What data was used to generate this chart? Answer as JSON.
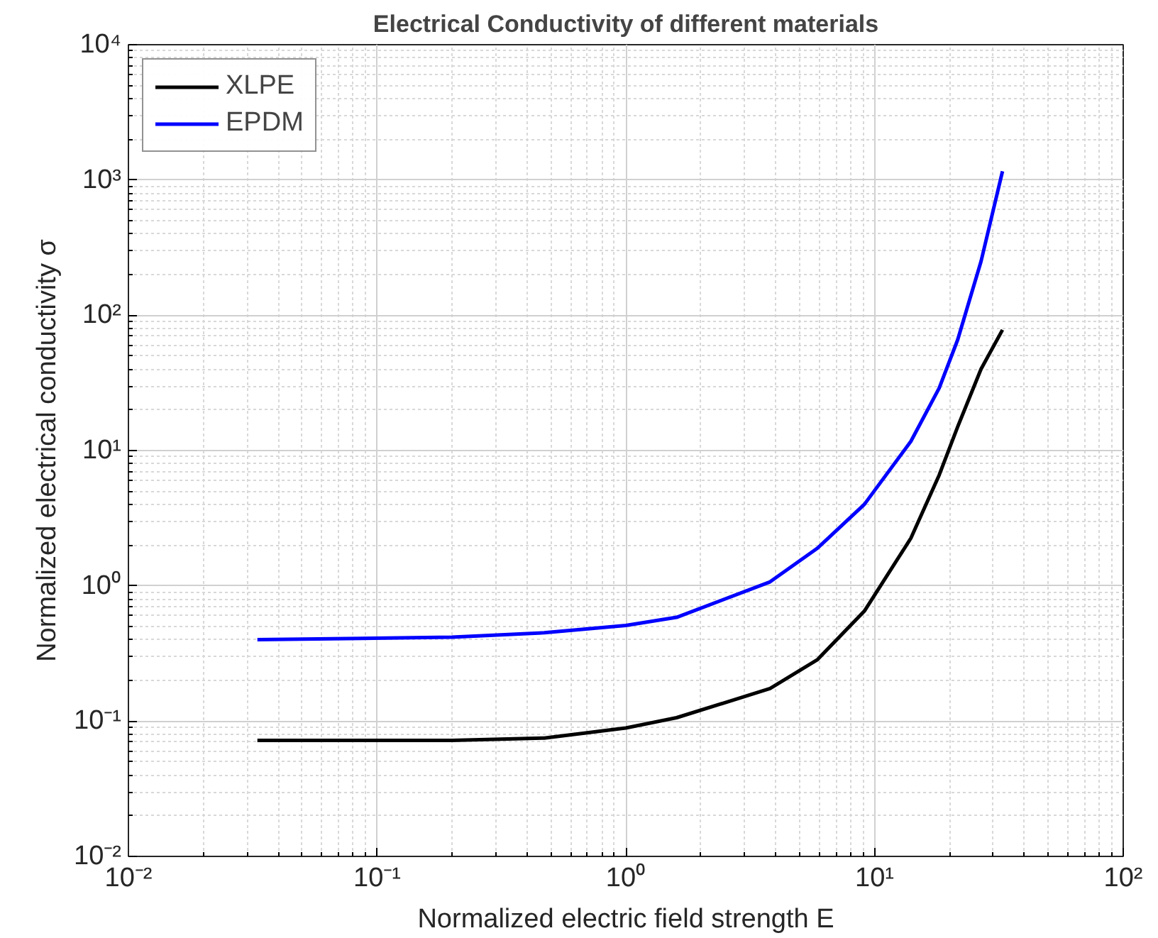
{
  "chart_data": {
    "type": "line",
    "title": "Electrical Conductivity of different materials",
    "xlabel": "Normalized electric field strength E",
    "ylabel": "Normalized electrical conductivity σ",
    "log": "xy",
    "grid": true,
    "legend": "top left",
    "line_style": "solid",
    "marker": "none",
    "xlim": [
      0.01,
      100
    ],
    "ylim": [
      0.01,
      10000
    ],
    "xticks": [
      {
        "value": 0.01,
        "label": "10⁻²"
      },
      {
        "value": 0.1,
        "label": "10⁻¹"
      },
      {
        "value": 1,
        "label": "10⁰"
      },
      {
        "value": 10,
        "label": "10¹"
      },
      {
        "value": 100,
        "label": "10²"
      }
    ],
    "yticks": [
      {
        "value": 0.01,
        "label": "10⁻²"
      },
      {
        "value": 0.1,
        "label": "10⁻¹"
      },
      {
        "value": 1,
        "label": "10⁰"
      },
      {
        "value": 10,
        "label": "10¹"
      },
      {
        "value": 100,
        "label": "10²"
      },
      {
        "value": 1000,
        "label": "10³"
      },
      {
        "value": 10000,
        "label": "10⁴"
      }
    ],
    "series": [
      {
        "name": "XLPE",
        "color": "#000000",
        "x": [
          0.033,
          0.2,
          0.47,
          1,
          1.6,
          3.8,
          5.9,
          9.1,
          14,
          18.2,
          21.6,
          26.8,
          32.7
        ],
        "values": [
          0.072,
          0.072,
          0.075,
          0.089,
          0.106,
          0.174,
          0.285,
          0.65,
          2.25,
          6.6,
          15,
          40,
          78
        ]
      },
      {
        "name": "EPDM",
        "color": "#0000ff",
        "x": [
          0.033,
          0.2,
          0.47,
          1,
          1.6,
          3.8,
          5.9,
          9.1,
          14,
          18.2,
          21.6,
          26.8,
          32.7
        ],
        "values": [
          0.4,
          0.417,
          0.45,
          0.51,
          0.585,
          1.07,
          1.9,
          4.0,
          11.7,
          29,
          66,
          250,
          1160
        ]
      }
    ]
  }
}
